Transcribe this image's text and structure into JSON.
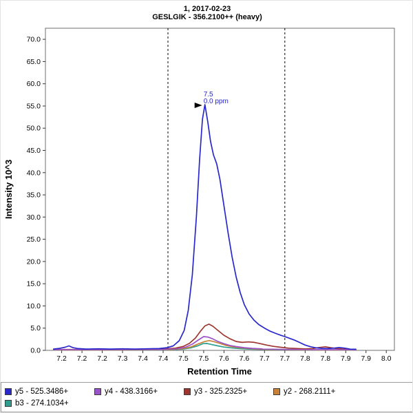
{
  "title": "1, 2017-02-23",
  "subtitle": "GESLGIK - 356.2100++ (heavy)",
  "chart_data": {
    "type": "line",
    "title": "1, 2017-02-23",
    "subtitle": "GESLGIK - 356.2100++ (heavy)",
    "xlabel": "Retention Time",
    "ylabel": "Intensity 10^3",
    "xlim": [
      7.11,
      7.97
    ],
    "ylim": [
      0,
      72.5
    ],
    "grid": false,
    "legend_position": "bottom",
    "x_ticks": {
      "values": [
        7.15,
        7.2,
        7.25,
        7.3,
        7.35,
        7.4,
        7.45,
        7.5,
        7.55,
        7.6,
        7.65,
        7.7,
        7.75,
        7.8,
        7.85,
        7.9,
        7.95
      ],
      "labels": [
        "7.2",
        "7.2",
        "7.2",
        "7.3",
        "7.4",
        "7.4",
        "7.5",
        "7.5",
        "7.6",
        "7.6",
        "7.7",
        "7.7",
        "7.8",
        "7.8",
        "7.9",
        "7.9",
        "8.0"
      ]
    },
    "y_ticks": {
      "values": [
        0,
        5,
        10,
        15,
        20,
        25,
        30,
        35,
        40,
        45,
        50,
        55,
        60,
        65,
        70
      ],
      "labels": [
        "0.0",
        "5.0",
        "10.0",
        "15.0",
        "20.0",
        "25.0",
        "30.0",
        "35.0",
        "40.0",
        "45.0",
        "50.0",
        "55.0",
        "60.0",
        "65.0",
        "70.0"
      ]
    },
    "peak_boundaries": [
      7.412,
      7.7
    ],
    "annotation": {
      "label": "7.5",
      "sublabel": "0.0 ppm",
      "x": 7.503,
      "y": 55.3,
      "color": "#2727cc"
    },
    "series": [
      {
        "id": "y5",
        "name": "y5 - 525.3486+",
        "color": "#2727cc",
        "points": [
          [
            7.13,
            0.3
          ],
          [
            7.145,
            0.45
          ],
          [
            7.158,
            0.7
          ],
          [
            7.168,
            1.0
          ],
          [
            7.178,
            0.6
          ],
          [
            7.19,
            0.4
          ],
          [
            7.21,
            0.3
          ],
          [
            7.24,
            0.35
          ],
          [
            7.27,
            0.3
          ],
          [
            7.3,
            0.35
          ],
          [
            7.33,
            0.3
          ],
          [
            7.36,
            0.35
          ],
          [
            7.39,
            0.4
          ],
          [
            7.41,
            0.6
          ],
          [
            7.425,
            1.0
          ],
          [
            7.44,
            2.2
          ],
          [
            7.452,
            4.5
          ],
          [
            7.462,
            9
          ],
          [
            7.472,
            17
          ],
          [
            7.482,
            30
          ],
          [
            7.49,
            43
          ],
          [
            7.497,
            52
          ],
          [
            7.503,
            55.3
          ],
          [
            7.51,
            51.5
          ],
          [
            7.517,
            47
          ],
          [
            7.524,
            44
          ],
          [
            7.532,
            42
          ],
          [
            7.54,
            38.5
          ],
          [
            7.55,
            32.5
          ],
          [
            7.56,
            26.5
          ],
          [
            7.57,
            21
          ],
          [
            7.58,
            16.5
          ],
          [
            7.59,
            13
          ],
          [
            7.6,
            10.3
          ],
          [
            7.612,
            8.2
          ],
          [
            7.624,
            6.8
          ],
          [
            7.636,
            5.8
          ],
          [
            7.65,
            5.0
          ],
          [
            7.664,
            4.3
          ],
          [
            7.678,
            3.8
          ],
          [
            7.69,
            3.4
          ],
          [
            7.7,
            3.1
          ],
          [
            7.712,
            2.7
          ],
          [
            7.724,
            2.3
          ],
          [
            7.736,
            1.8
          ],
          [
            7.75,
            1.2
          ],
          [
            7.764,
            0.8
          ],
          [
            7.778,
            0.55
          ],
          [
            7.792,
            0.45
          ],
          [
            7.806,
            0.4
          ],
          [
            7.82,
            0.5
          ],
          [
            7.834,
            0.65
          ],
          [
            7.848,
            0.5
          ],
          [
            7.86,
            0.3
          ],
          [
            7.875,
            0.25
          ]
        ]
      },
      {
        "id": "y4",
        "name": "y4 - 438.3166+",
        "color": "#9a52c7",
        "points": [
          [
            7.13,
            0.15
          ],
          [
            7.22,
            0.15
          ],
          [
            7.31,
            0.18
          ],
          [
            7.4,
            0.2
          ],
          [
            7.435,
            0.35
          ],
          [
            7.455,
            0.7
          ],
          [
            7.472,
            1.4
          ],
          [
            7.488,
            2.4
          ],
          [
            7.5,
            3.1
          ],
          [
            7.51,
            3.0
          ],
          [
            7.522,
            2.6
          ],
          [
            7.535,
            2.0
          ],
          [
            7.55,
            1.5
          ],
          [
            7.565,
            1.1
          ],
          [
            7.58,
            0.85
          ],
          [
            7.6,
            0.6
          ],
          [
            7.62,
            0.45
          ],
          [
            7.645,
            0.33
          ],
          [
            7.67,
            0.27
          ],
          [
            7.7,
            0.22
          ],
          [
            7.74,
            0.18
          ],
          [
            7.78,
            0.15
          ],
          [
            7.82,
            0.15
          ],
          [
            7.86,
            0.12
          ],
          [
            7.875,
            0.12
          ]
        ]
      },
      {
        "id": "y3",
        "name": "y3 - 325.2325+",
        "color": "#9e352f",
        "points": [
          [
            7.13,
            0.2
          ],
          [
            7.2,
            0.2
          ],
          [
            7.27,
            0.2
          ],
          [
            7.34,
            0.25
          ],
          [
            7.4,
            0.3
          ],
          [
            7.43,
            0.5
          ],
          [
            7.45,
            0.9
          ],
          [
            7.465,
            1.6
          ],
          [
            7.48,
            2.8
          ],
          [
            7.492,
            4.3
          ],
          [
            7.503,
            5.5
          ],
          [
            7.513,
            5.9
          ],
          [
            7.523,
            5.4
          ],
          [
            7.535,
            4.5
          ],
          [
            7.55,
            3.4
          ],
          [
            7.565,
            2.6
          ],
          [
            7.58,
            2.0
          ],
          [
            7.595,
            1.8
          ],
          [
            7.61,
            1.9
          ],
          [
            7.625,
            1.8
          ],
          [
            7.64,
            1.5
          ],
          [
            7.655,
            1.2
          ],
          [
            7.672,
            0.9
          ],
          [
            7.69,
            0.7
          ],
          [
            7.71,
            0.5
          ],
          [
            7.73,
            0.4
          ],
          [
            7.75,
            0.32
          ],
          [
            7.768,
            0.4
          ],
          [
            7.785,
            0.65
          ],
          [
            7.8,
            0.8
          ],
          [
            7.813,
            0.6
          ],
          [
            7.828,
            0.4
          ],
          [
            7.845,
            0.28
          ],
          [
            7.86,
            0.22
          ],
          [
            7.875,
            0.2
          ]
        ]
      },
      {
        "id": "y2",
        "name": "y2 - 268.2111+",
        "color": "#c98136",
        "points": [
          [
            7.13,
            0.1
          ],
          [
            7.25,
            0.1
          ],
          [
            7.37,
            0.12
          ],
          [
            7.42,
            0.18
          ],
          [
            7.45,
            0.4
          ],
          [
            7.47,
            0.8
          ],
          [
            7.488,
            1.5
          ],
          [
            7.503,
            2.0
          ],
          [
            7.514,
            2.2
          ],
          [
            7.526,
            1.95
          ],
          [
            7.54,
            1.55
          ],
          [
            7.556,
            1.1
          ],
          [
            7.572,
            0.8
          ],
          [
            7.59,
            0.6
          ],
          [
            7.61,
            0.45
          ],
          [
            7.635,
            0.3
          ],
          [
            7.66,
            0.22
          ],
          [
            7.69,
            0.18
          ],
          [
            7.73,
            0.14
          ],
          [
            7.78,
            0.1
          ],
          [
            7.83,
            0.1
          ],
          [
            7.875,
            0.1
          ]
        ]
      },
      {
        "id": "b3",
        "name": "b3 - 274.1034+",
        "color": "#2f9e8e",
        "points": [
          [
            7.13,
            0.1
          ],
          [
            7.25,
            0.1
          ],
          [
            7.37,
            0.1
          ],
          [
            7.42,
            0.15
          ],
          [
            7.45,
            0.3
          ],
          [
            7.47,
            0.6
          ],
          [
            7.485,
            1.0
          ],
          [
            7.498,
            1.5
          ],
          [
            7.508,
            1.55
          ],
          [
            7.52,
            1.3
          ],
          [
            7.535,
            1.0
          ],
          [
            7.55,
            0.75
          ],
          [
            7.568,
            0.55
          ],
          [
            7.588,
            0.4
          ],
          [
            7.61,
            0.28
          ],
          [
            7.64,
            0.2
          ],
          [
            7.67,
            0.15
          ],
          [
            7.71,
            0.12
          ],
          [
            7.76,
            0.1
          ],
          [
            7.82,
            0.1
          ],
          [
            7.875,
            0.1
          ]
        ]
      }
    ]
  }
}
